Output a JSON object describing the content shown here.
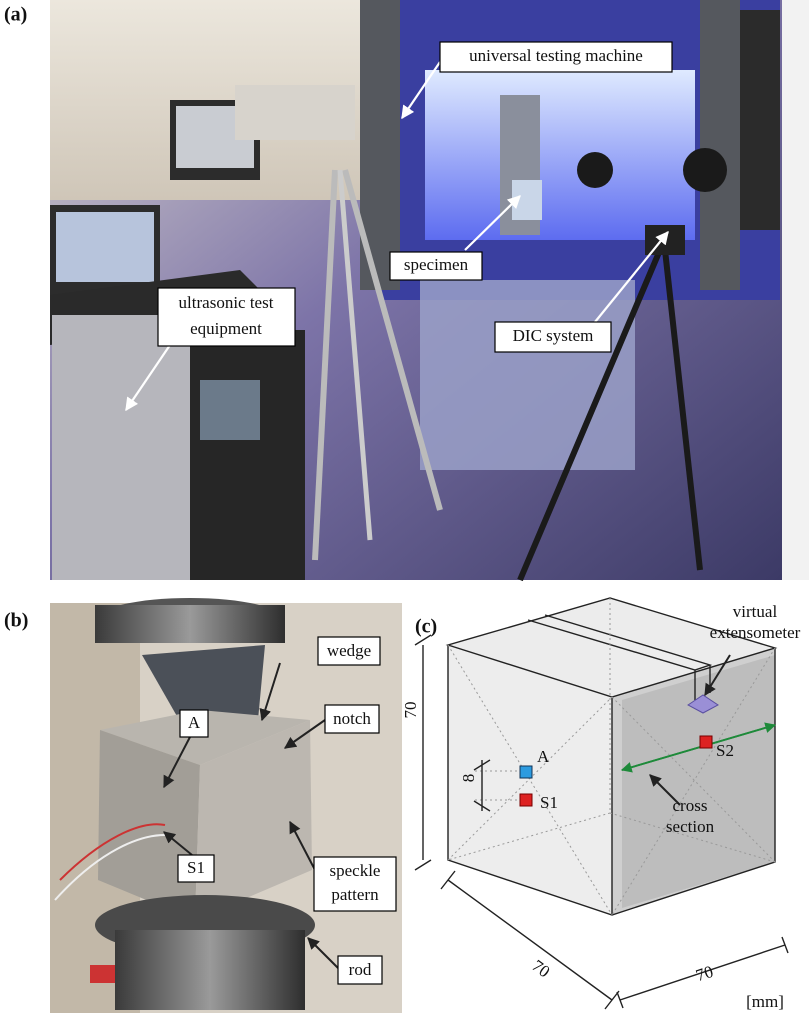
{
  "panels": [
    {
      "label": "(a)",
      "annotations": [
        {
          "lines": [
            "universal testing machine"
          ]
        },
        {
          "lines": [
            "specimen"
          ]
        },
        {
          "lines": [
            "DIC system"
          ]
        },
        {
          "lines": [
            "ultrasonic test",
            "equipment"
          ]
        }
      ]
    },
    {
      "label": "(b)",
      "annotations": [
        {
          "lines": [
            "wedge"
          ]
        },
        {
          "lines": [
            "notch"
          ]
        },
        {
          "lines": [
            "A"
          ]
        },
        {
          "lines": [
            "S1"
          ]
        },
        {
          "lines": [
            "speckle",
            "pattern"
          ]
        },
        {
          "lines": [
            "rod"
          ]
        }
      ]
    },
    {
      "label": "(c)",
      "annotations": [
        {
          "lines": [
            "virtual",
            "extensometer"
          ]
        },
        {
          "lines": [
            "A"
          ]
        },
        {
          "lines": [
            "S1"
          ]
        },
        {
          "lines": [
            "S2"
          ]
        },
        {
          "lines": [
            "cross",
            "section"
          ]
        }
      ],
      "dimensions": [
        70,
        8,
        70,
        70
      ],
      "unit": "[mm]"
    }
  ]
}
